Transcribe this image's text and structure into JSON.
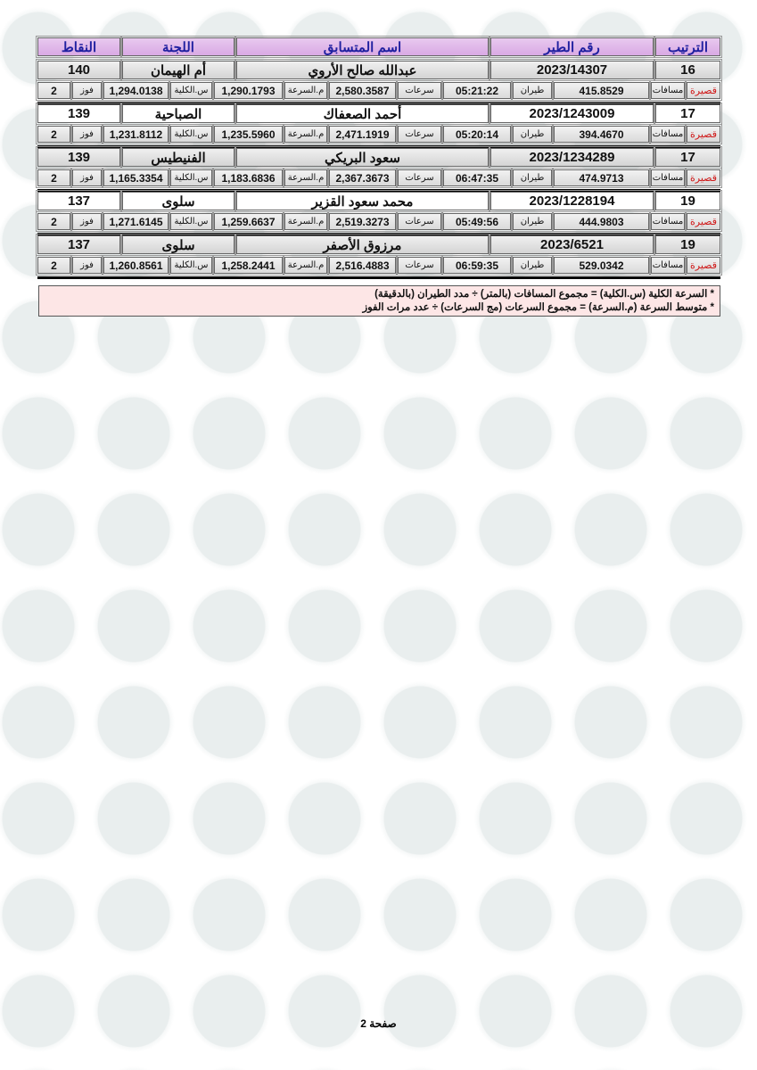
{
  "header": {
    "rank": "الترتيب",
    "ring": "رقم الطير",
    "name": "اسم المتسابق",
    "committee": "اللجنة",
    "points": "النقاط"
  },
  "labels": {
    "category": "قصيرة",
    "distance": "مسافات",
    "flight": "طيران",
    "speeds": "سرعات",
    "avg_speed": "م.السرعة",
    "total_speed": "س.الكلية",
    "wins": "فوز"
  },
  "rows": [
    {
      "rank": "16",
      "ring": "2023/14307",
      "name": "عبدالله صالح الأروي",
      "committee": "أم الهيمان",
      "points": "140",
      "distance": "415.8529",
      "flight": "05:21:22",
      "speeds": "2,580.3587",
      "avg_speed": "1,290.1793",
      "total_speed": "1,294.0138",
      "wins": "2"
    },
    {
      "rank": "17",
      "ring": "2023/1243009",
      "name": "أحمد الصعفاك",
      "committee": "الصباحية",
      "points": "139",
      "distance": "394.4670",
      "flight": "05:20:14",
      "speeds": "2,471.1919",
      "avg_speed": "1,235.5960",
      "total_speed": "1,231.8112",
      "wins": "2"
    },
    {
      "rank": "17",
      "ring": "2023/1234289",
      "name": "سعود البريكي",
      "committee": "الفنيطيس",
      "points": "139",
      "distance": "474.9713",
      "flight": "06:47:35",
      "speeds": "2,367.3673",
      "avg_speed": "1,183.6836",
      "total_speed": "1,165.3354",
      "wins": "2"
    },
    {
      "rank": "19",
      "ring": "2023/1228194",
      "name": "محمد سعود القزير",
      "committee": "سلوى",
      "points": "137",
      "distance": "444.9803",
      "flight": "05:49:56",
      "speeds": "2,519.3273",
      "avg_speed": "1,259.6637",
      "total_speed": "1,271.6145",
      "wins": "2"
    },
    {
      "rank": "19",
      "ring": "2023/6521",
      "name": "مرزوق الأصفر",
      "committee": "سلوى",
      "points": "137",
      "distance": "529.0342",
      "flight": "06:59:35",
      "speeds": "2,516.4883",
      "avg_speed": "1,258.2441",
      "total_speed": "1,260.8561",
      "wins": "2"
    }
  ],
  "notes": [
    "* السرعة الكلية (س.الكلية) = مجموع المسافات (بالمتر) ÷ مدد الطيران (بالدقيقة)",
    "* متوسط السرعة (م.السرعة) = مجموع السرعات (مج السرعات) ÷ عدد مرات الفوز"
  ],
  "footer": {
    "page": "صفحة 2"
  },
  "colors": {
    "header_bg": "#d9a9e4",
    "header_text": "#2020a0",
    "category_text": "#d01818",
    "notes_bg": "#fde6e6"
  }
}
